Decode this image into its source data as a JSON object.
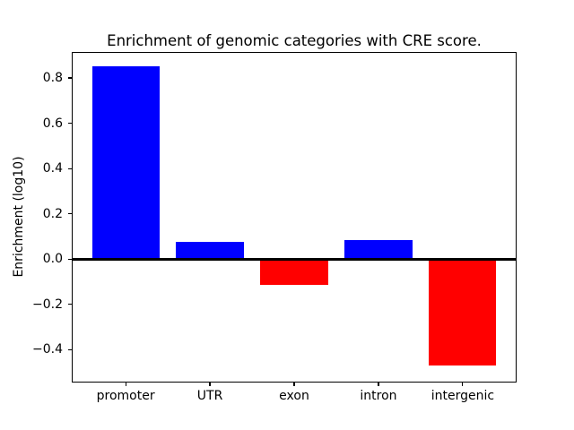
{
  "figure": {
    "background_color": "#ffffff",
    "border_color": "#000000"
  },
  "chart_data": {
    "type": "bar",
    "title": "Enrichment of genomic categories with CRE score.",
    "xlabel": "",
    "ylabel": "Enrichment (log10)",
    "categories": [
      "promoter",
      "UTR",
      "exon",
      "intron",
      "intergenic"
    ],
    "values": [
      0.85,
      0.075,
      -0.115,
      0.083,
      -0.47
    ],
    "bar_colors": [
      "#0000ff",
      "#0000ff",
      "#ff0000",
      "#0000ff",
      "#ff0000"
    ],
    "positive_color": "#0000ff",
    "negative_color": "#ff0000",
    "bar_width_fraction": 0.8,
    "ylim": [
      -0.545,
      0.915
    ],
    "xlim": [
      -0.64,
      4.64
    ],
    "yticks": [
      -0.4,
      -0.2,
      0.0,
      0.2,
      0.4,
      0.6,
      0.8
    ],
    "ytick_labels": [
      "−0.4",
      "−0.2",
      "0.0",
      "0.2",
      "0.4",
      "0.6",
      "0.8"
    ],
    "zero_line": {
      "y": 0.0,
      "color": "#000000",
      "thickness_px": 3
    },
    "grid": false,
    "legend": null
  }
}
